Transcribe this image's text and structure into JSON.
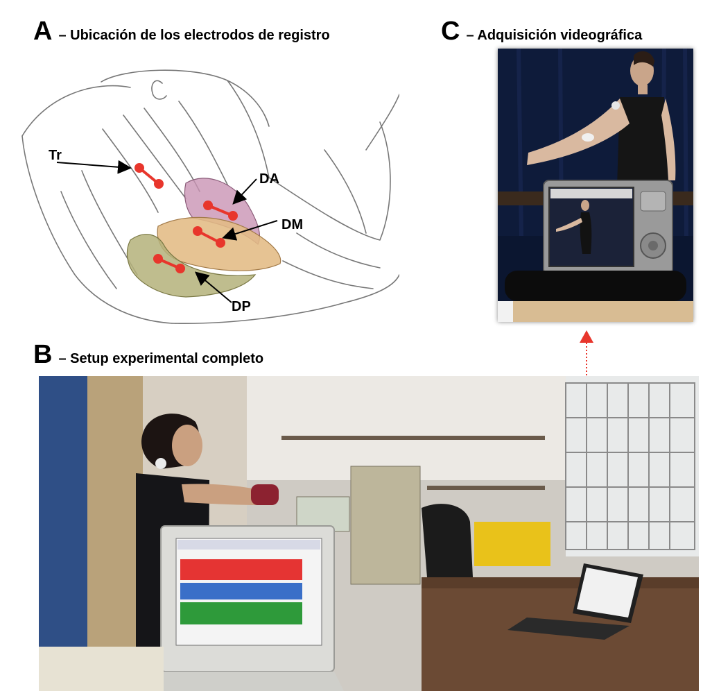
{
  "panels": {
    "a": {
      "letter": "A",
      "caption": "– Ubicación de los electrodos de registro"
    },
    "b": {
      "letter": "B",
      "caption": "– Setup experimental completo"
    },
    "c": {
      "letter": "C",
      "caption": "– Adquisición videográfica"
    }
  },
  "muscles": {
    "tr": "Tr",
    "da": "DA",
    "dm": "DM",
    "dp": "DP"
  },
  "colors": {
    "electrode": "#e8362c",
    "anterior_deltoid": "#c994b4",
    "middle_deltoid": "#e3bb84",
    "posterior_deltoid": "#b4b27a",
    "connector_arrow": "#e8362c"
  }
}
